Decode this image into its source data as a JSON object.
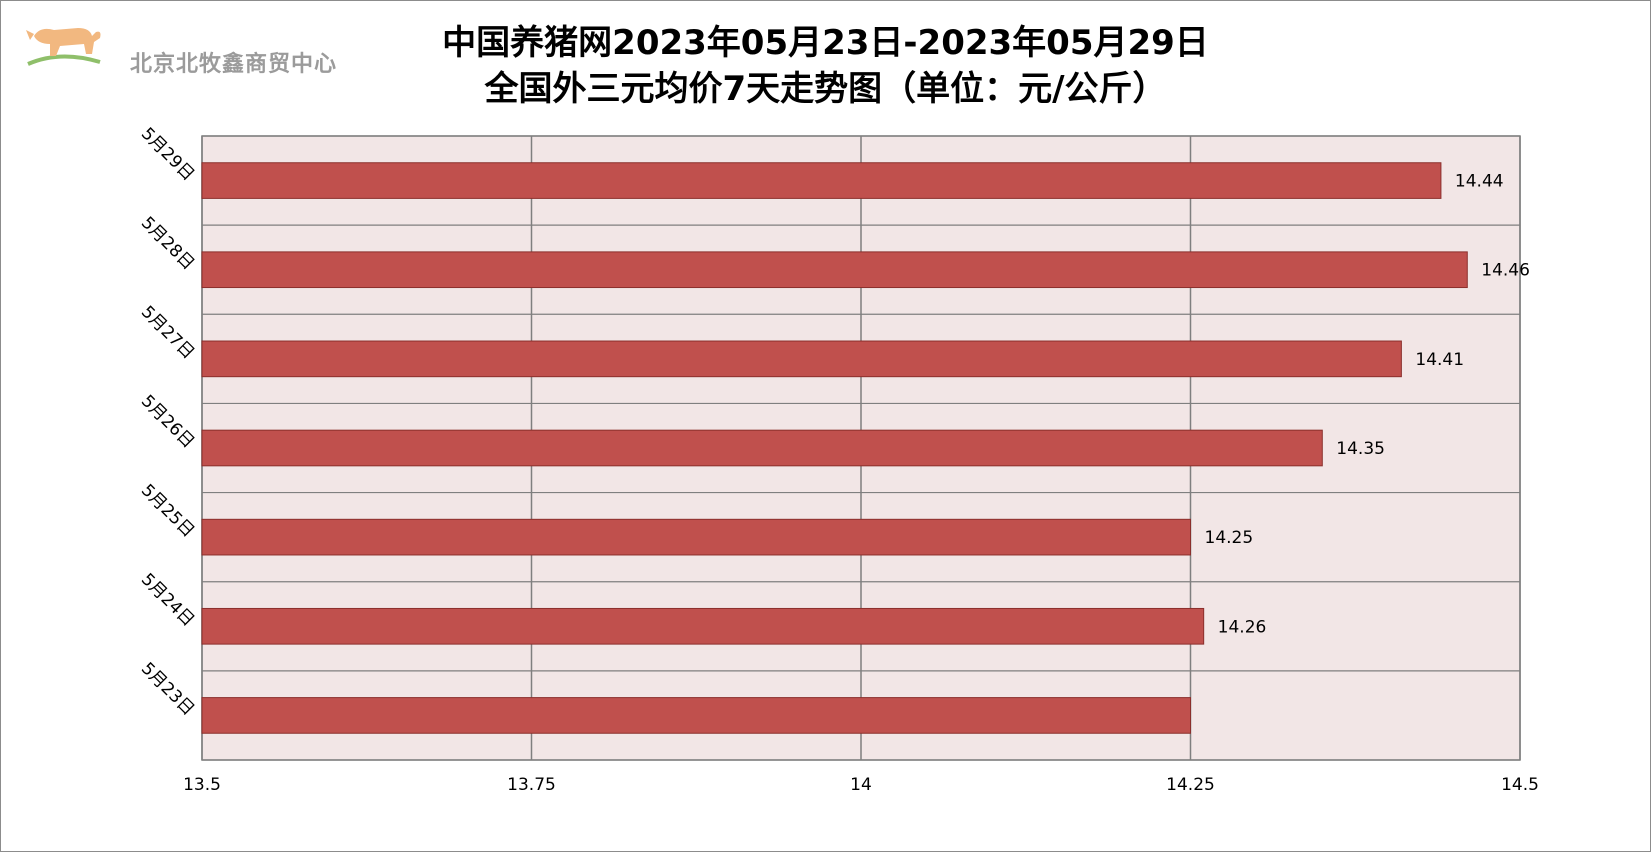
{
  "logo": {
    "text": "北京北牧鑫商贸中心",
    "icon": "cow-logo-icon"
  },
  "title": {
    "line1": "中国养猪网2023年05月23日-2023年05月29日",
    "line2": "全国外三元均价7天走势图（单位：元/公斤）"
  },
  "chart_data": {
    "type": "bar",
    "orientation": "horizontal",
    "categories": [
      "5月29日",
      "5月28日",
      "5月27日",
      "5月26日",
      "5月25日",
      "5月24日",
      "5月23日"
    ],
    "values": [
      14.44,
      14.46,
      14.41,
      14.35,
      14.25,
      14.26,
      14.25
    ],
    "data_labels": [
      "14.44",
      "14.46",
      "14.41",
      "14.35",
      "14.25",
      "14.26",
      ""
    ],
    "xlim": [
      13.5,
      14.5
    ],
    "x_ticks": [
      "13.5",
      "13.75",
      "14",
      "14.25",
      "14.5"
    ],
    "grid": true,
    "colors": {
      "bar": "#c0504d",
      "bar_border": "#8b2f2c",
      "plot_bg": "#f2e6e6",
      "grid": "#7f7f7f"
    }
  }
}
